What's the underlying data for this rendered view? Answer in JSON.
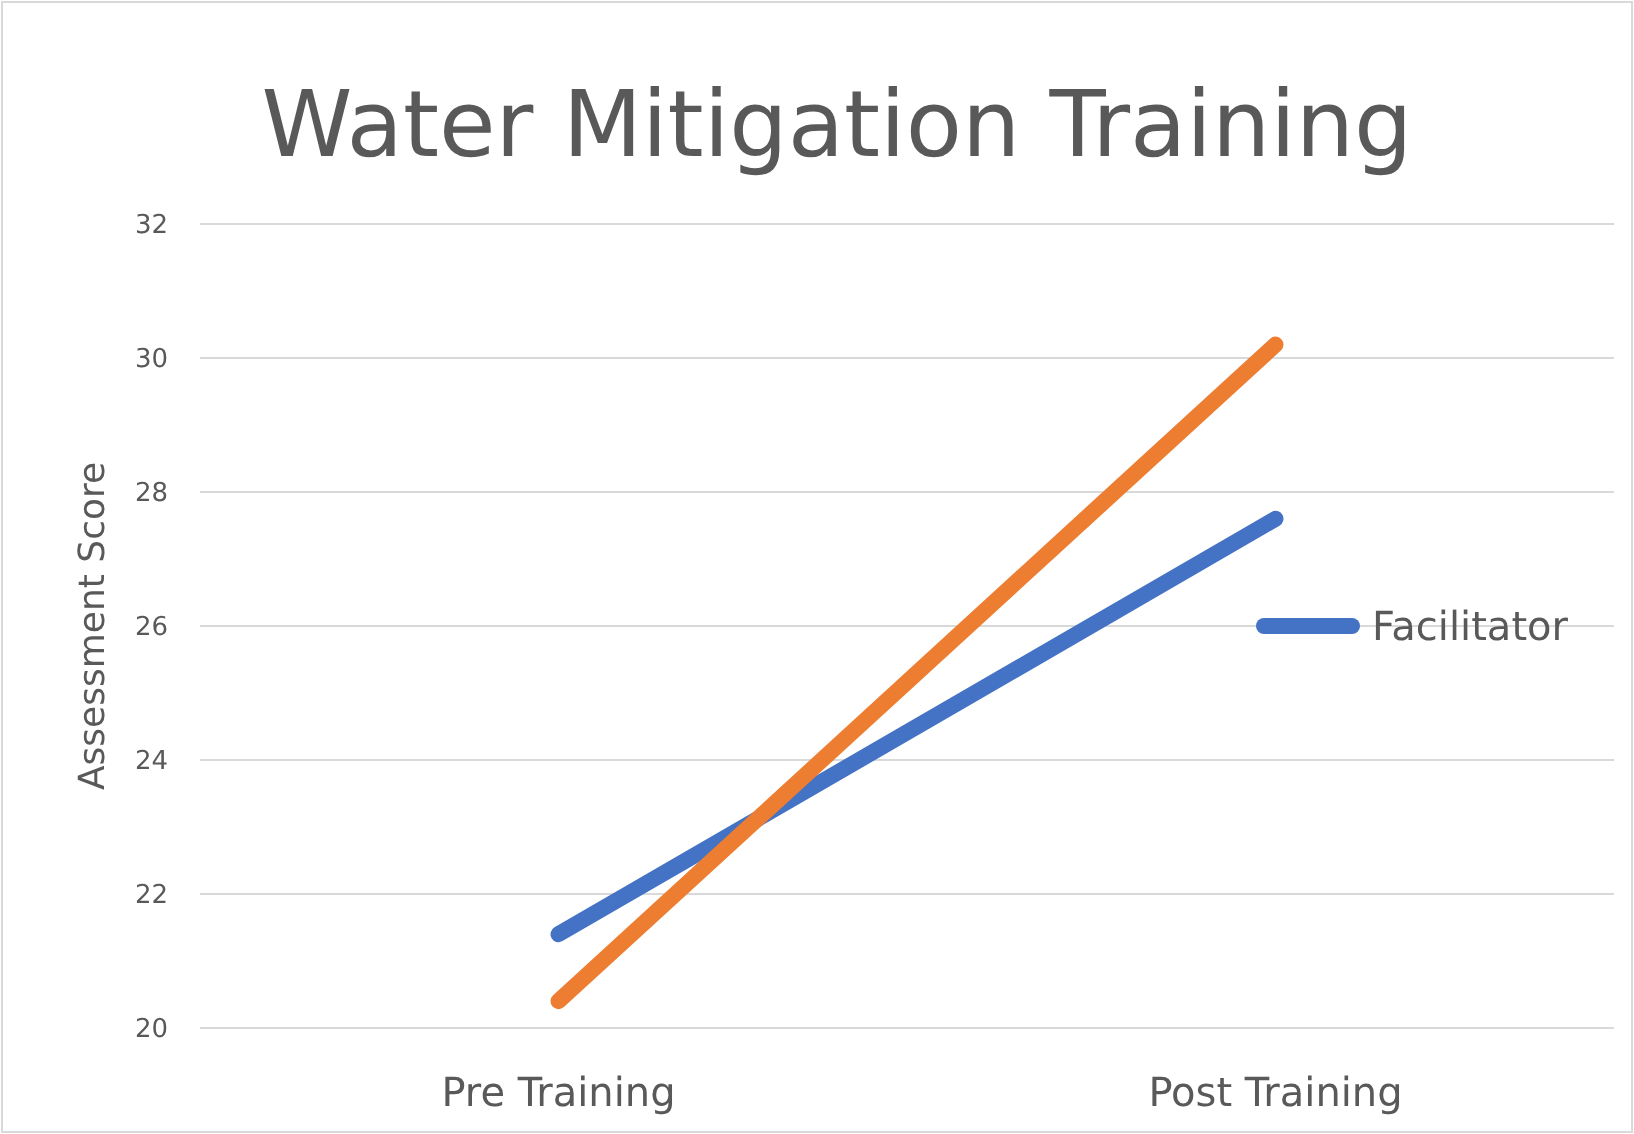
{
  "chart_data": {
    "type": "line",
    "title": "Water Mitigation Training",
    "ylabel": "Assessment Score",
    "categories": [
      "Pre Training",
      "Post Training"
    ],
    "series": [
      {
        "name": "Facilitator",
        "color": "#4472c4",
        "values": [
          21.4,
          27.6
        ]
      },
      {
        "color": "#ed7d31",
        "values": [
          20.4,
          30.2
        ]
      }
    ],
    "ylim": [
      20,
      32
    ],
    "yticks": [
      20,
      22,
      24,
      26,
      28,
      30,
      32
    ],
    "grid": "y",
    "legend": "right",
    "marker": "none",
    "line_style": "solid"
  }
}
